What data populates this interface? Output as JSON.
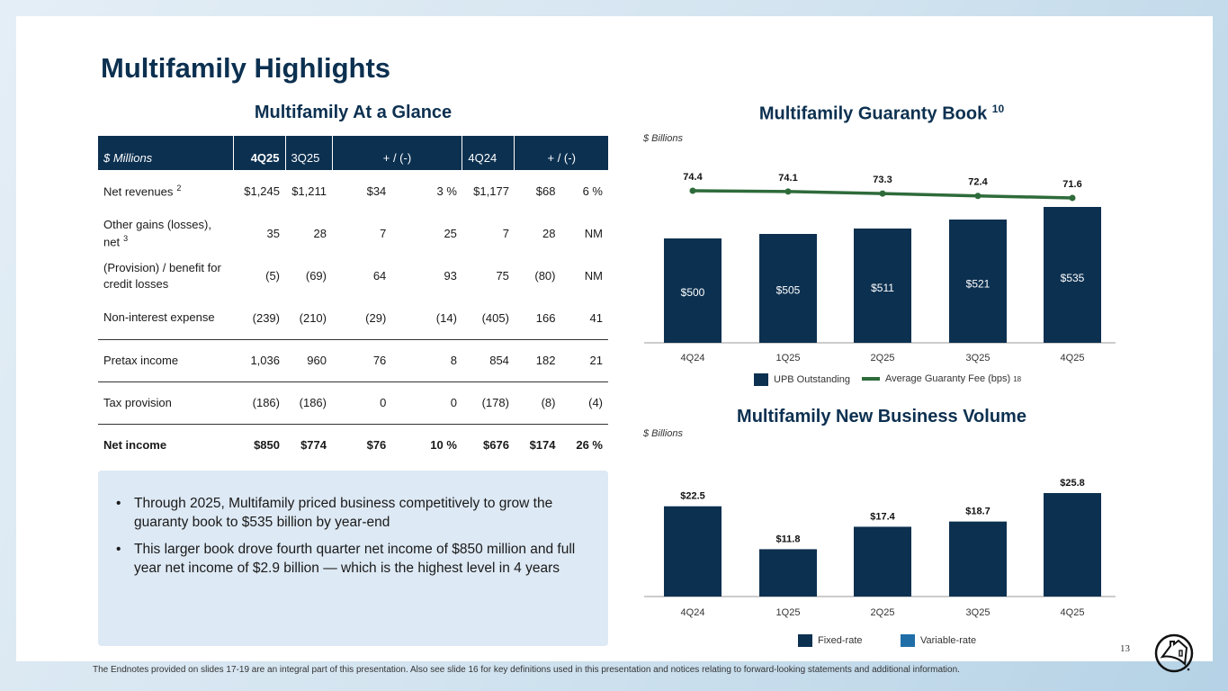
{
  "title": "Multifamily Highlights",
  "glance": {
    "heading": "Multifamily At a Glance",
    "headers": [
      "$ Millions",
      "4Q25",
      "3Q25",
      "+ / (-)",
      "4Q24",
      "+ / (-)"
    ],
    "rows": [
      {
        "label": "Net revenues",
        "sup": "2",
        "cells": [
          "$1,245",
          "$1,211",
          "$34",
          "3 %",
          "$1,177",
          "$68",
          "6 %"
        ]
      },
      {
        "label": "Other gains (losses), net",
        "sup": "3",
        "cells": [
          "35",
          "28",
          "7",
          "25",
          "7",
          "28",
          "NM"
        ]
      },
      {
        "label": "(Provision) / benefit for credit losses",
        "sup": "",
        "cells": [
          "(5)",
          "(69)",
          "64",
          "93",
          "75",
          "(80)",
          "NM"
        ]
      },
      {
        "label": "Non-interest expense",
        "sup": "",
        "cells": [
          "(239)",
          "(210)",
          "(29)",
          "(14)",
          "(405)",
          "166",
          "41"
        ]
      },
      {
        "label": "Pretax income",
        "sup": "",
        "cells": [
          "1,036",
          "960",
          "76",
          "8",
          "854",
          "182",
          "21"
        ]
      },
      {
        "label": "Tax provision",
        "sup": "",
        "cells": [
          "(186)",
          "(186)",
          "0",
          "0",
          "(178)",
          "(8)",
          "(4)"
        ]
      },
      {
        "label": "Net income",
        "sup": "",
        "cells": [
          "$850",
          "$774",
          "$76",
          "10 %",
          "$676",
          "$174",
          "26 %"
        ]
      }
    ]
  },
  "bullets": [
    "Through 2025, Multifamily priced business competitively to grow the guaranty book to $535 billion by year-end",
    "This larger book drove fourth quarter net income of $850 million and full year net income of $2.9 billion — which is the highest level in 4 years"
  ],
  "chart_data": [
    {
      "type": "bar",
      "title": "Multifamily Guaranty Book",
      "title_sup": "10",
      "unit": "$ Billions",
      "categories": [
        "4Q24",
        "1Q25",
        "2Q25",
        "3Q25",
        "4Q25"
      ],
      "series": [
        {
          "name": "UPB Outstanding",
          "type": "bar",
          "values": [
            500,
            505,
            511,
            521,
            535
          ],
          "labels": [
            "$500",
            "$505",
            "$511",
            "$521",
            "$535"
          ],
          "color": "#0c3050"
        },
        {
          "name": "Average Guaranty Fee (bps)",
          "name_sup": "18",
          "type": "line",
          "values": [
            74.4,
            74.1,
            73.3,
            72.4,
            71.6
          ],
          "labels": [
            "74.4",
            "74.1",
            "73.3",
            "72.4",
            "71.6"
          ],
          "color": "#2e6b3a"
        }
      ],
      "legend": "bottom",
      "grid": false
    },
    {
      "type": "bar",
      "title": "Multifamily New Business Volume",
      "unit": "$ Billions",
      "categories": [
        "4Q24",
        "1Q25",
        "2Q25",
        "3Q25",
        "4Q25"
      ],
      "series": [
        {
          "name": "Fixed-rate",
          "values": [
            22.5,
            11.8,
            17.4,
            18.7,
            25.8
          ],
          "labels": [
            "$22.5",
            "$11.8",
            "$17.4",
            "$18.7",
            "$25.8"
          ],
          "color": "#0c3050"
        },
        {
          "name": "Variable-rate",
          "values": [
            0,
            0,
            0,
            0,
            0
          ],
          "color": "#1f6ea8"
        }
      ],
      "ylim": [
        0,
        26
      ],
      "legend": "bottom",
      "grid": false
    }
  ],
  "page_number": "13",
  "footer": "The Endnotes provided on slides 17-19 are an integral part of this presentation. Also see slide 16 for key definitions used in this presentation and notices relating to forward-looking statements and additional information."
}
